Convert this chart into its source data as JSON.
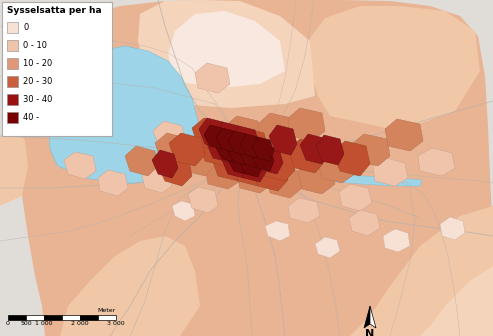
{
  "title": "Sysselsatta per ha",
  "legend_labels": [
    "0",
    "0 - 10",
    "10 - 20",
    "20 - 30",
    "30 - 40",
    "40 -"
  ],
  "legend_colors": [
    "#f7e0d4",
    "#f0c4aa",
    "#e09878",
    "#c86040",
    "#991111",
    "#770000"
  ],
  "background_outer": "#e0ddd8",
  "map_bg_main": "#e8b898",
  "map_bg_light": "#f2d0ba",
  "map_bg_very_light": "#f8e8e0",
  "water_color": "#9dd4e8",
  "road_color": "#b8b0a8",
  "fig_width": 4.93,
  "fig_height": 3.36,
  "dpi": 100,
  "scale_labels": [
    "0",
    "500",
    "1 000",
    "2 000",
    "3 000"
  ],
  "north_label": "N",
  "meter_label": "Meter"
}
